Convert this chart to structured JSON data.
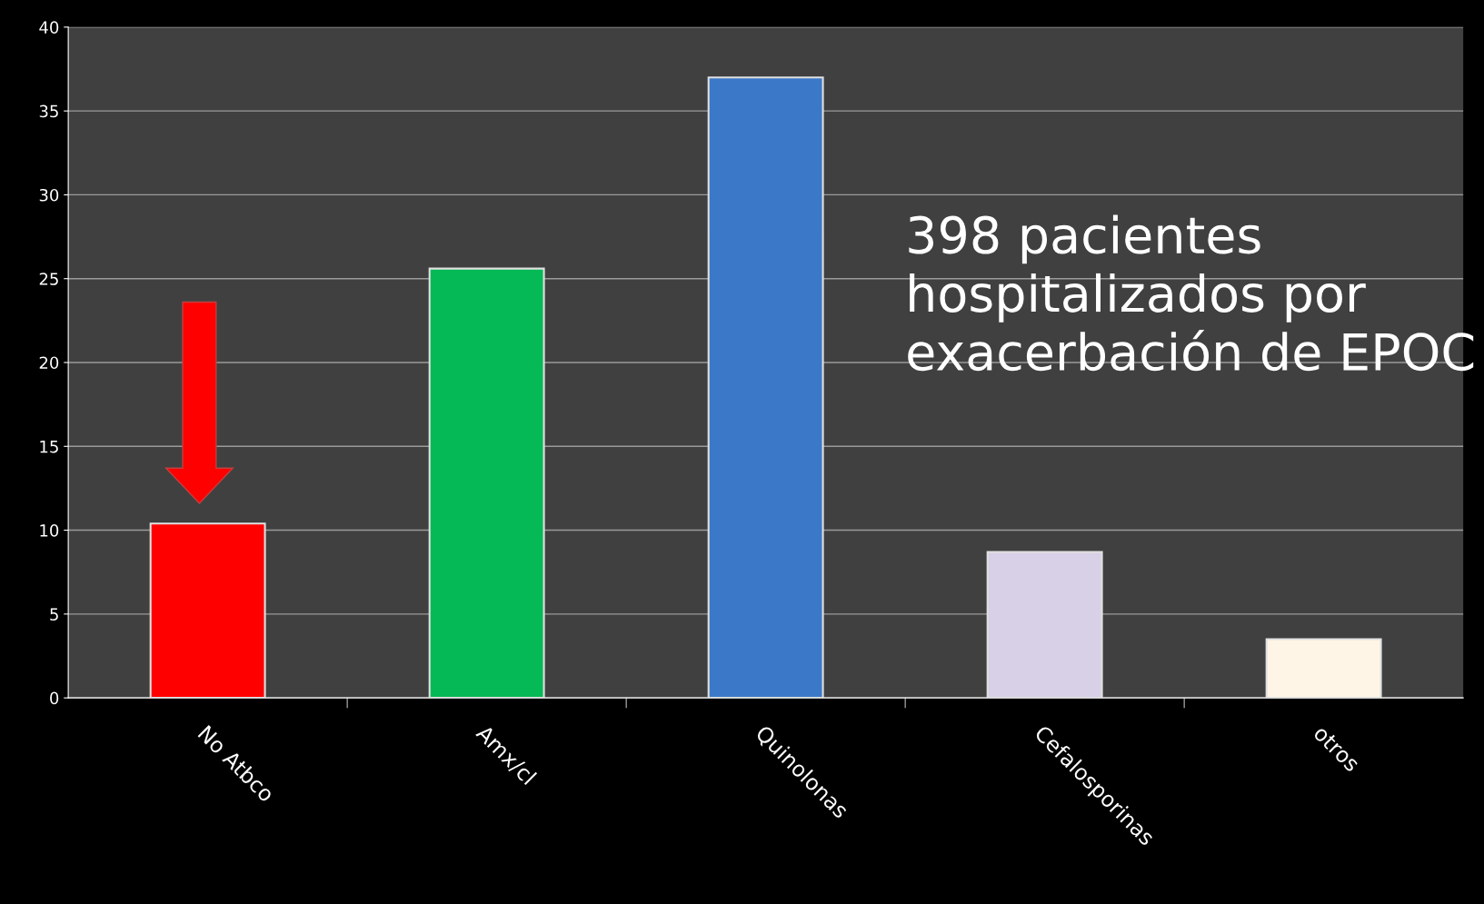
{
  "chart_data": {
    "type": "bar",
    "categories": [
      "No Atbco",
      "Amx/cl",
      "Quinolonas",
      "Cefalosporinas",
      "otros"
    ],
    "values": [
      10.4,
      25.6,
      37.0,
      8.7,
      3.5
    ],
    "colors": [
      "#ff0000",
      "#05b956",
      "#3b78c8",
      "#d8d0e6",
      "#fff5e6"
    ],
    "ylim": [
      0,
      40
    ],
    "yticks": [
      0,
      5,
      10,
      15,
      20,
      25,
      30,
      35,
      40
    ],
    "grid": "y",
    "annotations": [
      "398 pacientes hospitalizados por exacerbación de EPOC"
    ]
  }
}
